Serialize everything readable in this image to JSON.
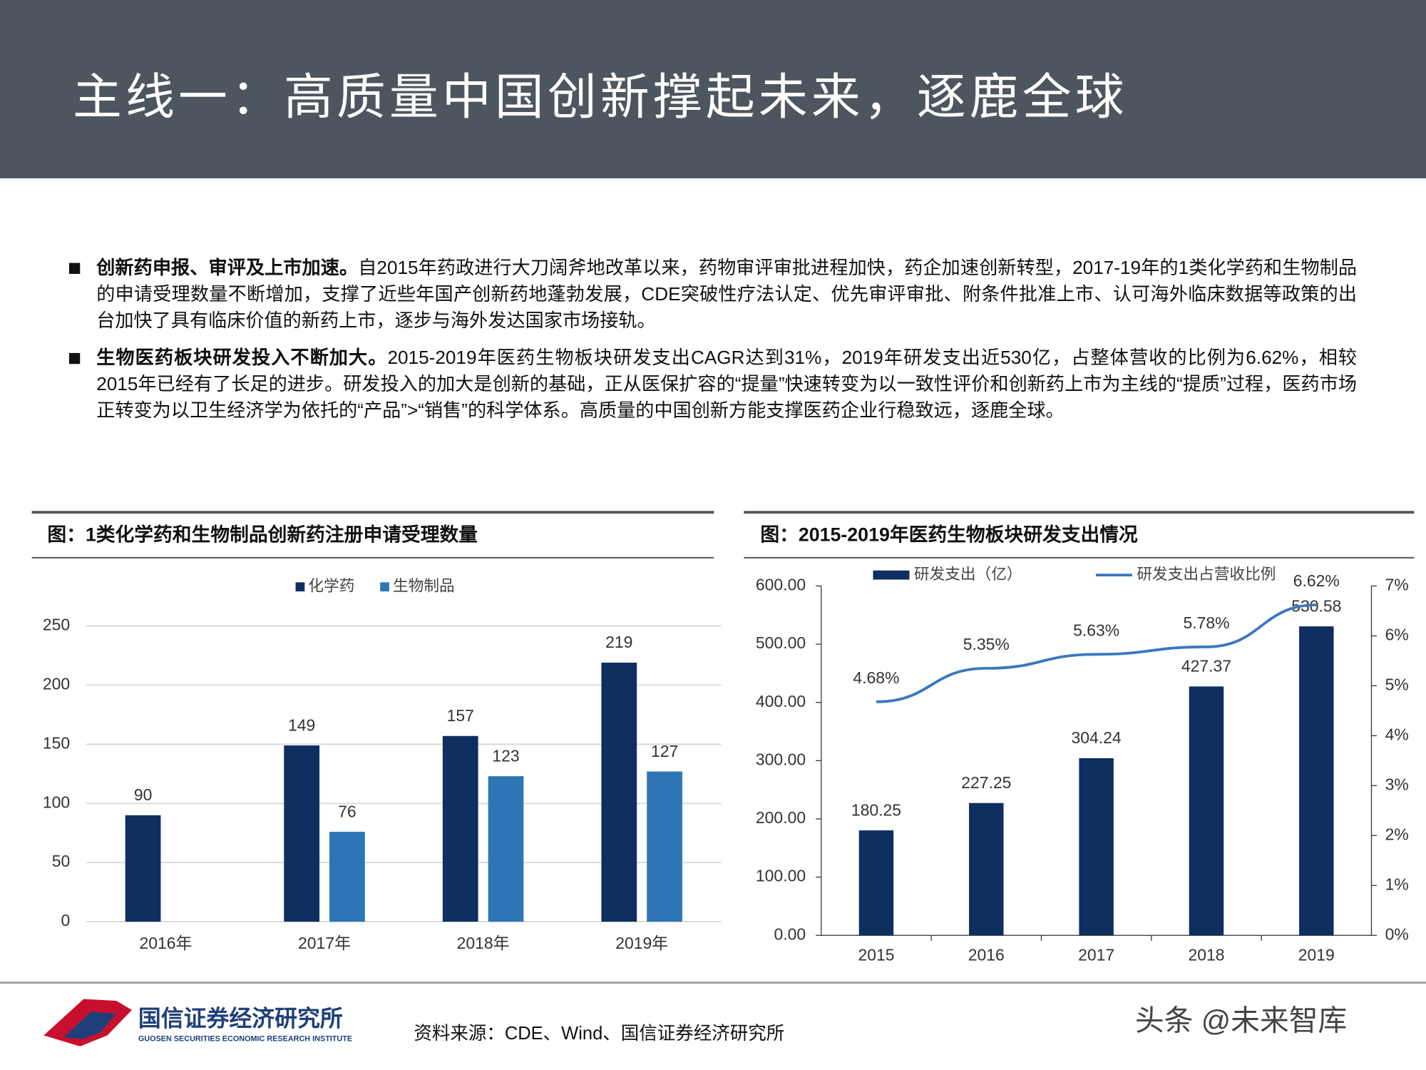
{
  "header": {
    "title": "主线一：高质量中国创新撑起未来，逐鹿全球"
  },
  "bullets": [
    {
      "lead": "创新药申报、审评及上市加速。",
      "text": "自2015年药政进行大刀阔斧地改革以来，药物审评审批进程加快，药企加速创新转型，2017-19年的1类化学药和生物制品的申请受理数量不断增加，支撑了近些年国产创新药地蓬勃发展，CDE突破性疗法认定、优先审评审批、附条件批准上市、认可海外临床数据等政策的出台加快了具有临床价值的新药上市，逐步与海外发达国家市场接轨。"
    },
    {
      "lead": "生物医药板块研发投入不断加大。",
      "text": "2015-2019年医药生物板块研发支出CAGR达到31%，2019年研发支出近530亿，占整体营收的比例为6.62%，相较2015年已经有了长足的进步。研发投入的加大是创新的基础，正从医保扩容的“提量”快速转变为以一致性评价和创新药上市为主线的“提质”过程，医药市场正转变为以卫生经济学为依托的“产品”>“销售”的科学体系。高质量的中国创新方能支撑医药企业行稳致远，逐鹿全球。"
    }
  ],
  "chart_data": [
    {
      "type": "bar",
      "title": "图：1类化学药和生物制品创新药注册申请受理数量",
      "categories": [
        "2016年",
        "2017年",
        "2018年",
        "2019年"
      ],
      "series": [
        {
          "name": "化学药",
          "color": "#0e2f5f",
          "values": [
            90,
            149,
            157,
            219
          ]
        },
        {
          "name": "生物制品",
          "color": "#2e75b6",
          "values": [
            null,
            76,
            123,
            127
          ]
        }
      ],
      "ylim": [
        0,
        250
      ],
      "yticks": [
        0,
        50,
        100,
        150,
        200,
        250
      ],
      "grid": true,
      "legend": "top"
    },
    {
      "type": "bar-line",
      "title": "图：2015-2019年医药生物板块研发支出情况",
      "categories": [
        "2015",
        "2016",
        "2017",
        "2018",
        "2019"
      ],
      "series": [
        {
          "name": "研发支出（亿）",
          "type": "bar",
          "color": "#0e2f5f",
          "values": [
            180.25,
            227.25,
            304.24,
            427.37,
            530.58
          ]
        },
        {
          "name": "研发支出占营收比例",
          "type": "line",
          "axis": "y2",
          "color": "#3a78bd",
          "values": [
            4.68,
            5.35,
            5.63,
            5.78,
            6.62
          ],
          "value_labels": [
            "4.68%",
            "5.35%",
            "5.63%",
            "5.78%",
            "6.62%"
          ]
        }
      ],
      "ylim": [
        0,
        600
      ],
      "yticks": [
        {
          "value": 0,
          "label": "0.00"
        },
        {
          "value": 100,
          "label": "100.00"
        },
        {
          "value": 200,
          "label": "200.00"
        },
        {
          "value": 300,
          "label": "300.00"
        },
        {
          "value": 400,
          "label": "400.00"
        },
        {
          "value": 500,
          "label": "500.00"
        },
        {
          "value": 600,
          "label": "600.00"
        }
      ],
      "y2lim": [
        0,
        7
      ],
      "y2ticks": [
        {
          "value": 0,
          "label": "0%"
        },
        {
          "value": 1,
          "label": "1%"
        },
        {
          "value": 2,
          "label": "2%"
        },
        {
          "value": 3,
          "label": "3%"
        },
        {
          "value": 4,
          "label": "4%"
        },
        {
          "value": 5,
          "label": "5%"
        },
        {
          "value": 6,
          "label": "6%"
        },
        {
          "value": 7,
          "label": "7%"
        }
      ],
      "grid": false,
      "legend": "top"
    }
  ],
  "footer": {
    "org": "国信证券经济研究所",
    "org_en": "GUOSEN SECURITIES ECONOMIC RESEARCH INSTITUTE",
    "source": "资料来源：CDE、Wind、国信证券经济研究所",
    "watermark": "头条 @未来智库"
  }
}
